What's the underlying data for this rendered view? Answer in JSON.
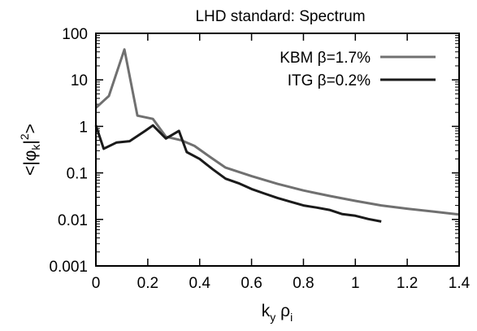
{
  "chart_data": {
    "type": "line",
    "title": "LHD standard: Spectrum",
    "xlabel": {
      "main": "k",
      "sub1": "y",
      "mid": " ρ",
      "sub2": "i"
    },
    "ylabel": {
      "pre": "<|φ",
      "sub": "k",
      "post": "|",
      "sup": "2",
      "end": ">"
    },
    "xlim": [
      0,
      1.4
    ],
    "ylim": [
      0.001,
      100
    ],
    "yscale": "log",
    "grid": false,
    "legend_position": "top-right",
    "x_ticks": [
      0,
      0.2,
      0.4,
      0.6,
      0.8,
      1,
      1.2,
      1.4
    ],
    "x_tick_labels": [
      "0",
      "0.2",
      "0.4",
      "0.6",
      "0.8",
      "1",
      "1.2",
      "1.4"
    ],
    "y_ticks": [
      0.001,
      0.01,
      0.1,
      1,
      10,
      100
    ],
    "y_tick_labels": [
      "0.001",
      "0.01",
      "0.1",
      "1",
      "10",
      "100"
    ],
    "series": [
      {
        "name": "KBM β=1.7%",
        "color": "#707070",
        "x": [
          0,
          0.05,
          0.11,
          0.16,
          0.22,
          0.27,
          0.33,
          0.38,
          0.44,
          0.5,
          0.6,
          0.7,
          0.8,
          0.9,
          1.0,
          1.1,
          1.2,
          1.3,
          1.4
        ],
        "y": [
          2.5,
          4.5,
          45,
          1.7,
          1.45,
          0.6,
          0.5,
          0.38,
          0.22,
          0.13,
          0.085,
          0.058,
          0.042,
          0.032,
          0.025,
          0.02,
          0.017,
          0.0148,
          0.0128
        ]
      },
      {
        "name": "ITG β=0.2%",
        "color": "#1a1a1a",
        "x": [
          0,
          0.03,
          0.08,
          0.13,
          0.19,
          0.22,
          0.27,
          0.32,
          0.35,
          0.4,
          0.45,
          0.5,
          0.55,
          0.6,
          0.65,
          0.7,
          0.75,
          0.8,
          0.85,
          0.9,
          0.95,
          1.0,
          1.05,
          1.1
        ],
        "y": [
          1.05,
          0.33,
          0.45,
          0.48,
          0.8,
          1.05,
          0.55,
          0.8,
          0.28,
          0.2,
          0.12,
          0.075,
          0.06,
          0.045,
          0.036,
          0.029,
          0.024,
          0.02,
          0.018,
          0.016,
          0.013,
          0.012,
          0.0102,
          0.009
        ]
      }
    ]
  }
}
